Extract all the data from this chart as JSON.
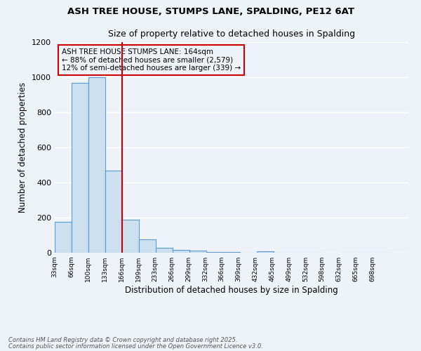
{
  "title1": "ASH TREE HOUSE, STUMPS LANE, SPALDING, PE12 6AT",
  "title2": "Size of property relative to detached houses in Spalding",
  "xlabel": "Distribution of detached houses by size in Spalding",
  "ylabel": "Number of detached properties",
  "footnote1": "Contains HM Land Registry data © Crown copyright and database right 2025.",
  "footnote2": "Contains public sector information licensed under the Open Government Licence v3.0.",
  "annotation_line1": "ASH TREE HOUSE STUMPS LANE: 164sqm",
  "annotation_line2": "← 88% of detached houses are smaller (2,579)",
  "annotation_line3": "12% of semi-detached houses are larger (339) →",
  "bar_left_edges": [
    33,
    66,
    100,
    133,
    166,
    199,
    233,
    266,
    299,
    332,
    366,
    399,
    432,
    465,
    499,
    532,
    598,
    632,
    665
  ],
  "bar_heights": [
    175,
    970,
    1000,
    470,
    190,
    75,
    28,
    18,
    12,
    5,
    5,
    0,
    10,
    0,
    0,
    0,
    0,
    0,
    0
  ],
  "bin_width": 33,
  "bar_facecolor": "#cce0f0",
  "bar_edgecolor": "#5b9bd5",
  "vline_color": "#cc0000",
  "vline_x": 166,
  "ylim": [
    0,
    1200
  ],
  "yticks": [
    0,
    200,
    400,
    600,
    800,
    1000,
    1200
  ],
  "xtick_labels": [
    "33sqm",
    "66sqm",
    "100sqm",
    "133sqm",
    "166sqm",
    "199sqm",
    "233sqm",
    "266sqm",
    "299sqm",
    "332sqm",
    "366sqm",
    "399sqm",
    "432sqm",
    "465sqm",
    "499sqm",
    "532sqm",
    "598sqm",
    "632sqm",
    "665sqm",
    "698sqm"
  ],
  "bg_color": "#eef2f9",
  "annotation_box_edgecolor": "#cc0000",
  "grid_color": "#ffffff",
  "xlim_left": 33,
  "xlim_right": 731
}
